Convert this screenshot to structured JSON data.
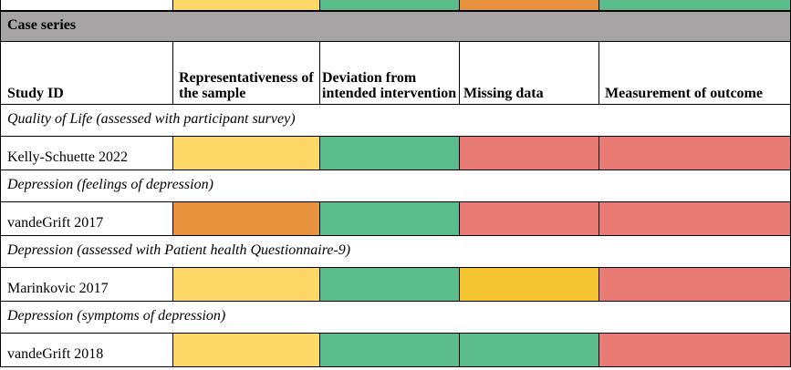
{
  "colors": {
    "low": "#5bbd8c",
    "moderate": "#fed866",
    "moderate_dark": "#f4c431",
    "serious": "#e8923d",
    "critical": "#e87b74",
    "section_bg": "#a6a4a4"
  },
  "section": {
    "title": "Case series"
  },
  "columns": [
    {
      "label": "Study ID"
    },
    {
      "label": "Representativeness of the sample"
    },
    {
      "label": "Deviation from intended intervention"
    },
    {
      "label": "Missing data"
    },
    {
      "label": "Measurement of outcome"
    }
  ],
  "groups": [
    {
      "label": "Quality of Life (assessed with participant survey)",
      "study": "Kelly-Schuette 2022",
      "ratings": [
        "moderate",
        "low",
        "critical",
        "critical"
      ]
    },
    {
      "label": "Depression (feelings of depression)",
      "study": "vandeGrift 2017",
      "ratings": [
        "serious",
        "low",
        "critical",
        "critical"
      ]
    },
    {
      "label": "Depression (assessed with Patient health Questionnaire-9)",
      "study": "Marinkovic 2017",
      "ratings": [
        "moderate",
        "low",
        "moderate_dark",
        "critical"
      ]
    },
    {
      "label": "Depression (symptoms of depression)",
      "study": "vandeGrift 2018",
      "ratings": [
        "moderate",
        "low",
        "low",
        "critical"
      ]
    }
  ],
  "top_partial": {
    "ratings": [
      "moderate",
      "low",
      "serious",
      "low"
    ]
  }
}
